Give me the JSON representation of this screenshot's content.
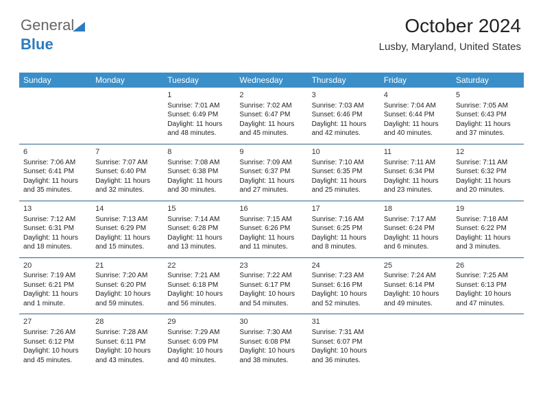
{
  "logo": {
    "part1": "General",
    "part2": "Blue"
  },
  "title": "October 2024",
  "location": "Lusby, Maryland, United States",
  "colors": {
    "header_bg": "#3b8fc9",
    "header_text": "#ffffff",
    "row_border": "#2c5f8a",
    "text": "#222222",
    "logo_blue": "#2b7bbf"
  },
  "daynames": [
    "Sunday",
    "Monday",
    "Tuesday",
    "Wednesday",
    "Thursday",
    "Friday",
    "Saturday"
  ],
  "weeks": [
    [
      null,
      null,
      {
        "n": "1",
        "sr": "Sunrise: 7:01 AM",
        "ss": "Sunset: 6:49 PM",
        "dl1": "Daylight: 11 hours",
        "dl2": "and 48 minutes."
      },
      {
        "n": "2",
        "sr": "Sunrise: 7:02 AM",
        "ss": "Sunset: 6:47 PM",
        "dl1": "Daylight: 11 hours",
        "dl2": "and 45 minutes."
      },
      {
        "n": "3",
        "sr": "Sunrise: 7:03 AM",
        "ss": "Sunset: 6:46 PM",
        "dl1": "Daylight: 11 hours",
        "dl2": "and 42 minutes."
      },
      {
        "n": "4",
        "sr": "Sunrise: 7:04 AM",
        "ss": "Sunset: 6:44 PM",
        "dl1": "Daylight: 11 hours",
        "dl2": "and 40 minutes."
      },
      {
        "n": "5",
        "sr": "Sunrise: 7:05 AM",
        "ss": "Sunset: 6:43 PM",
        "dl1": "Daylight: 11 hours",
        "dl2": "and 37 minutes."
      }
    ],
    [
      {
        "n": "6",
        "sr": "Sunrise: 7:06 AM",
        "ss": "Sunset: 6:41 PM",
        "dl1": "Daylight: 11 hours",
        "dl2": "and 35 minutes."
      },
      {
        "n": "7",
        "sr": "Sunrise: 7:07 AM",
        "ss": "Sunset: 6:40 PM",
        "dl1": "Daylight: 11 hours",
        "dl2": "and 32 minutes."
      },
      {
        "n": "8",
        "sr": "Sunrise: 7:08 AM",
        "ss": "Sunset: 6:38 PM",
        "dl1": "Daylight: 11 hours",
        "dl2": "and 30 minutes."
      },
      {
        "n": "9",
        "sr": "Sunrise: 7:09 AM",
        "ss": "Sunset: 6:37 PM",
        "dl1": "Daylight: 11 hours",
        "dl2": "and 27 minutes."
      },
      {
        "n": "10",
        "sr": "Sunrise: 7:10 AM",
        "ss": "Sunset: 6:35 PM",
        "dl1": "Daylight: 11 hours",
        "dl2": "and 25 minutes."
      },
      {
        "n": "11",
        "sr": "Sunrise: 7:11 AM",
        "ss": "Sunset: 6:34 PM",
        "dl1": "Daylight: 11 hours",
        "dl2": "and 23 minutes."
      },
      {
        "n": "12",
        "sr": "Sunrise: 7:11 AM",
        "ss": "Sunset: 6:32 PM",
        "dl1": "Daylight: 11 hours",
        "dl2": "and 20 minutes."
      }
    ],
    [
      {
        "n": "13",
        "sr": "Sunrise: 7:12 AM",
        "ss": "Sunset: 6:31 PM",
        "dl1": "Daylight: 11 hours",
        "dl2": "and 18 minutes."
      },
      {
        "n": "14",
        "sr": "Sunrise: 7:13 AM",
        "ss": "Sunset: 6:29 PM",
        "dl1": "Daylight: 11 hours",
        "dl2": "and 15 minutes."
      },
      {
        "n": "15",
        "sr": "Sunrise: 7:14 AM",
        "ss": "Sunset: 6:28 PM",
        "dl1": "Daylight: 11 hours",
        "dl2": "and 13 minutes."
      },
      {
        "n": "16",
        "sr": "Sunrise: 7:15 AM",
        "ss": "Sunset: 6:26 PM",
        "dl1": "Daylight: 11 hours",
        "dl2": "and 11 minutes."
      },
      {
        "n": "17",
        "sr": "Sunrise: 7:16 AM",
        "ss": "Sunset: 6:25 PM",
        "dl1": "Daylight: 11 hours",
        "dl2": "and 8 minutes."
      },
      {
        "n": "18",
        "sr": "Sunrise: 7:17 AM",
        "ss": "Sunset: 6:24 PM",
        "dl1": "Daylight: 11 hours",
        "dl2": "and 6 minutes."
      },
      {
        "n": "19",
        "sr": "Sunrise: 7:18 AM",
        "ss": "Sunset: 6:22 PM",
        "dl1": "Daylight: 11 hours",
        "dl2": "and 3 minutes."
      }
    ],
    [
      {
        "n": "20",
        "sr": "Sunrise: 7:19 AM",
        "ss": "Sunset: 6:21 PM",
        "dl1": "Daylight: 11 hours",
        "dl2": "and 1 minute."
      },
      {
        "n": "21",
        "sr": "Sunrise: 7:20 AM",
        "ss": "Sunset: 6:20 PM",
        "dl1": "Daylight: 10 hours",
        "dl2": "and 59 minutes."
      },
      {
        "n": "22",
        "sr": "Sunrise: 7:21 AM",
        "ss": "Sunset: 6:18 PM",
        "dl1": "Daylight: 10 hours",
        "dl2": "and 56 minutes."
      },
      {
        "n": "23",
        "sr": "Sunrise: 7:22 AM",
        "ss": "Sunset: 6:17 PM",
        "dl1": "Daylight: 10 hours",
        "dl2": "and 54 minutes."
      },
      {
        "n": "24",
        "sr": "Sunrise: 7:23 AM",
        "ss": "Sunset: 6:16 PM",
        "dl1": "Daylight: 10 hours",
        "dl2": "and 52 minutes."
      },
      {
        "n": "25",
        "sr": "Sunrise: 7:24 AM",
        "ss": "Sunset: 6:14 PM",
        "dl1": "Daylight: 10 hours",
        "dl2": "and 49 minutes."
      },
      {
        "n": "26",
        "sr": "Sunrise: 7:25 AM",
        "ss": "Sunset: 6:13 PM",
        "dl1": "Daylight: 10 hours",
        "dl2": "and 47 minutes."
      }
    ],
    [
      {
        "n": "27",
        "sr": "Sunrise: 7:26 AM",
        "ss": "Sunset: 6:12 PM",
        "dl1": "Daylight: 10 hours",
        "dl2": "and 45 minutes."
      },
      {
        "n": "28",
        "sr": "Sunrise: 7:28 AM",
        "ss": "Sunset: 6:11 PM",
        "dl1": "Daylight: 10 hours",
        "dl2": "and 43 minutes."
      },
      {
        "n": "29",
        "sr": "Sunrise: 7:29 AM",
        "ss": "Sunset: 6:09 PM",
        "dl1": "Daylight: 10 hours",
        "dl2": "and 40 minutes."
      },
      {
        "n": "30",
        "sr": "Sunrise: 7:30 AM",
        "ss": "Sunset: 6:08 PM",
        "dl1": "Daylight: 10 hours",
        "dl2": "and 38 minutes."
      },
      {
        "n": "31",
        "sr": "Sunrise: 7:31 AM",
        "ss": "Sunset: 6:07 PM",
        "dl1": "Daylight: 10 hours",
        "dl2": "and 36 minutes."
      },
      null,
      null
    ]
  ]
}
